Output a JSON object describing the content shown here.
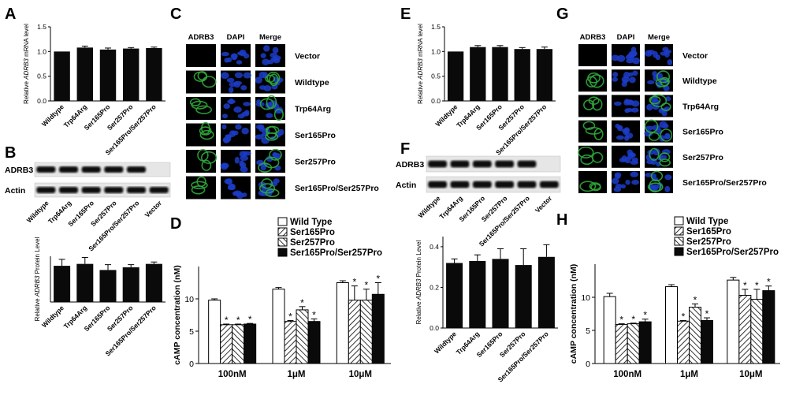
{
  "panels": {
    "A": "A",
    "B": "B",
    "C": "C",
    "D": "D",
    "E": "E",
    "F": "F",
    "G": "G",
    "H": "H"
  },
  "chart_data": [
    {
      "id": "A",
      "type": "bar",
      "ylabel_pre": "Relative ",
      "ylabel_ital": "ADRB3",
      "ylabel_post": " mRNA level",
      "ylim": [
        0,
        1.5
      ],
      "yticks": [
        "0.0",
        "0.5",
        "1.0",
        "1.5"
      ],
      "categories": [
        "Wildtype",
        "Trp64Arg",
        "Ser165Pro",
        "Ser257Pro",
        "Ser165Pro/Ser257Pro"
      ],
      "values": [
        1.0,
        1.08,
        1.04,
        1.06,
        1.07
      ],
      "errors": [
        0.0,
        0.03,
        0.03,
        0.02,
        0.02
      ]
    },
    {
      "id": "B",
      "type": "bar",
      "ylabel_pre": "Relative ",
      "ylabel_ital": "ADRB3",
      "ylabel_post": " Protein Level",
      "ylim": [
        0,
        1.2
      ],
      "yticks": [],
      "categories": [
        "Wildtype",
        "Trp64Arg",
        "Ser165Pro",
        "Ser257Pro",
        "Ser165Pro/Ser257Pro"
      ],
      "values": [
        0.95,
        1.0,
        0.84,
        0.91,
        1.0
      ],
      "errors": [
        0.17,
        0.17,
        0.14,
        0.07,
        0.05
      ]
    },
    {
      "id": "E",
      "type": "bar",
      "ylabel_pre": "Relative ",
      "ylabel_ital": "ADRB3",
      "ylabel_post": " mRNA level",
      "ylim": [
        0,
        1.5
      ],
      "yticks": [
        "0.0",
        "0.5",
        "1.0",
        "1.5"
      ],
      "categories": [
        "Wildtype",
        "Trp64Arg",
        "Ser165Pro",
        "Ser257Pro",
        "Ser165Pro/Ser257Pro"
      ],
      "values": [
        1.0,
        1.09,
        1.09,
        1.05,
        1.05
      ],
      "errors": [
        0.0,
        0.03,
        0.03,
        0.03,
        0.04
      ]
    },
    {
      "id": "F",
      "type": "bar",
      "ylabel_pre": "Relative ",
      "ylabel_ital": "ADRB3",
      "ylabel_post": " Protein Level",
      "ylim": [
        0,
        0.45
      ],
      "yticks": [
        "0.0",
        "0.2",
        "0.4"
      ],
      "categories": [
        "Wildtype",
        "Trp64Arg",
        "Ser165Pro",
        "Ser257Pro",
        "Ser165Pro/Ser257Pro"
      ],
      "values": [
        0.32,
        0.33,
        0.34,
        0.31,
        0.35
      ],
      "errors": [
        0.02,
        0.03,
        0.05,
        0.08,
        0.06
      ]
    },
    {
      "id": "D",
      "type": "bar",
      "ylabel": "cAMP concentration (nM)",
      "ylim": [
        0,
        15
      ],
      "yticks": [
        "0",
        "5",
        "10"
      ],
      "categories": [
        "100nM",
        "1μM",
        "10μM"
      ],
      "legend": [
        "Wild Type",
        "Ser165Pro",
        "Ser257Pro",
        "Ser165Pro/Ser257Pro"
      ],
      "series": [
        {
          "name": "Wild Type",
          "values": [
            9.8,
            11.5,
            12.5
          ],
          "errors": [
            0.2,
            0.25,
            0.3
          ]
        },
        {
          "name": "Ser165Pro",
          "values": [
            6.0,
            6.5,
            9.8
          ],
          "errors": [
            0.1,
            0.15,
            2.2
          ]
        },
        {
          "name": "Ser257Pro",
          "values": [
            6.0,
            8.3,
            9.8
          ],
          "errors": [
            0.1,
            0.5,
            1.7
          ]
        },
        {
          "name": "Ser165Pro/Ser257Pro",
          "values": [
            6.1,
            6.5,
            10.7
          ],
          "errors": [
            0.1,
            0.4,
            1.8
          ]
        }
      ],
      "star": "*"
    },
    {
      "id": "H",
      "type": "bar",
      "ylabel": "cAMP concentration (nM)",
      "ylim": [
        0,
        15
      ],
      "yticks": [
        "0",
        "5",
        "10"
      ],
      "categories": [
        "100nM",
        "1μM",
        "10μM"
      ],
      "legend": [
        "Wild Type",
        "Ser165Pro",
        "Ser257Pro",
        "Ser165Pro/Ser257Pro"
      ],
      "series": [
        {
          "name": "Wild Type",
          "values": [
            10.1,
            11.6,
            12.6
          ],
          "errors": [
            0.5,
            0.3,
            0.4
          ]
        },
        {
          "name": "Ser165Pro",
          "values": [
            5.9,
            6.4,
            10.3
          ],
          "errors": [
            0.1,
            0.1,
            0.9
          ]
        },
        {
          "name": "Ser257Pro",
          "values": [
            6.0,
            8.5,
            9.7
          ],
          "errors": [
            0.1,
            0.5,
            1.5
          ]
        },
        {
          "name": "Ser165Pro/Ser257Pro",
          "values": [
            6.3,
            6.5,
            11.0
          ],
          "errors": [
            0.4,
            0.4,
            0.7
          ]
        }
      ],
      "star": "*"
    }
  ],
  "blot_B": {
    "rows": [
      "ADRB3",
      "Actin"
    ],
    "lanes": [
      "Wildtype",
      "Trp64Arg",
      "Ser165Pro",
      "Ser257Pro",
      "Ser165Pro/Ser257Pro",
      "Vector"
    ]
  },
  "blot_F": {
    "rows": [
      "ADRB3",
      "Actin"
    ],
    "lanes": [
      "Wildtype",
      "Trp64Arg",
      "Ser165Pro",
      "Ser257Pro",
      "Ser165Pro/Ser257Pro",
      "Vector"
    ]
  },
  "micro_C": {
    "cols": [
      "ADRB3",
      "DAPI",
      "Merge"
    ],
    "rows": [
      "Vector",
      "Wildtype",
      "Trp64Arg",
      "Ser165Pro",
      "Ser257Pro",
      "Ser165Pro/Ser257Pro"
    ]
  },
  "micro_G": {
    "cols": [
      "ADRB3",
      "DAPI",
      "Merge"
    ],
    "rows": [
      "Vector",
      "Wildtype",
      "Trp64Arg",
      "Ser165Pro",
      "Ser257Pro",
      "Ser165Pro/Ser257Pro"
    ]
  },
  "colors": {
    "bar": "#0a0a0a",
    "dapi": "#1c3cc8",
    "adrb3": "#2fa83a",
    "blot_bg": "#e6e6e6",
    "band": "#0c0c0c"
  }
}
